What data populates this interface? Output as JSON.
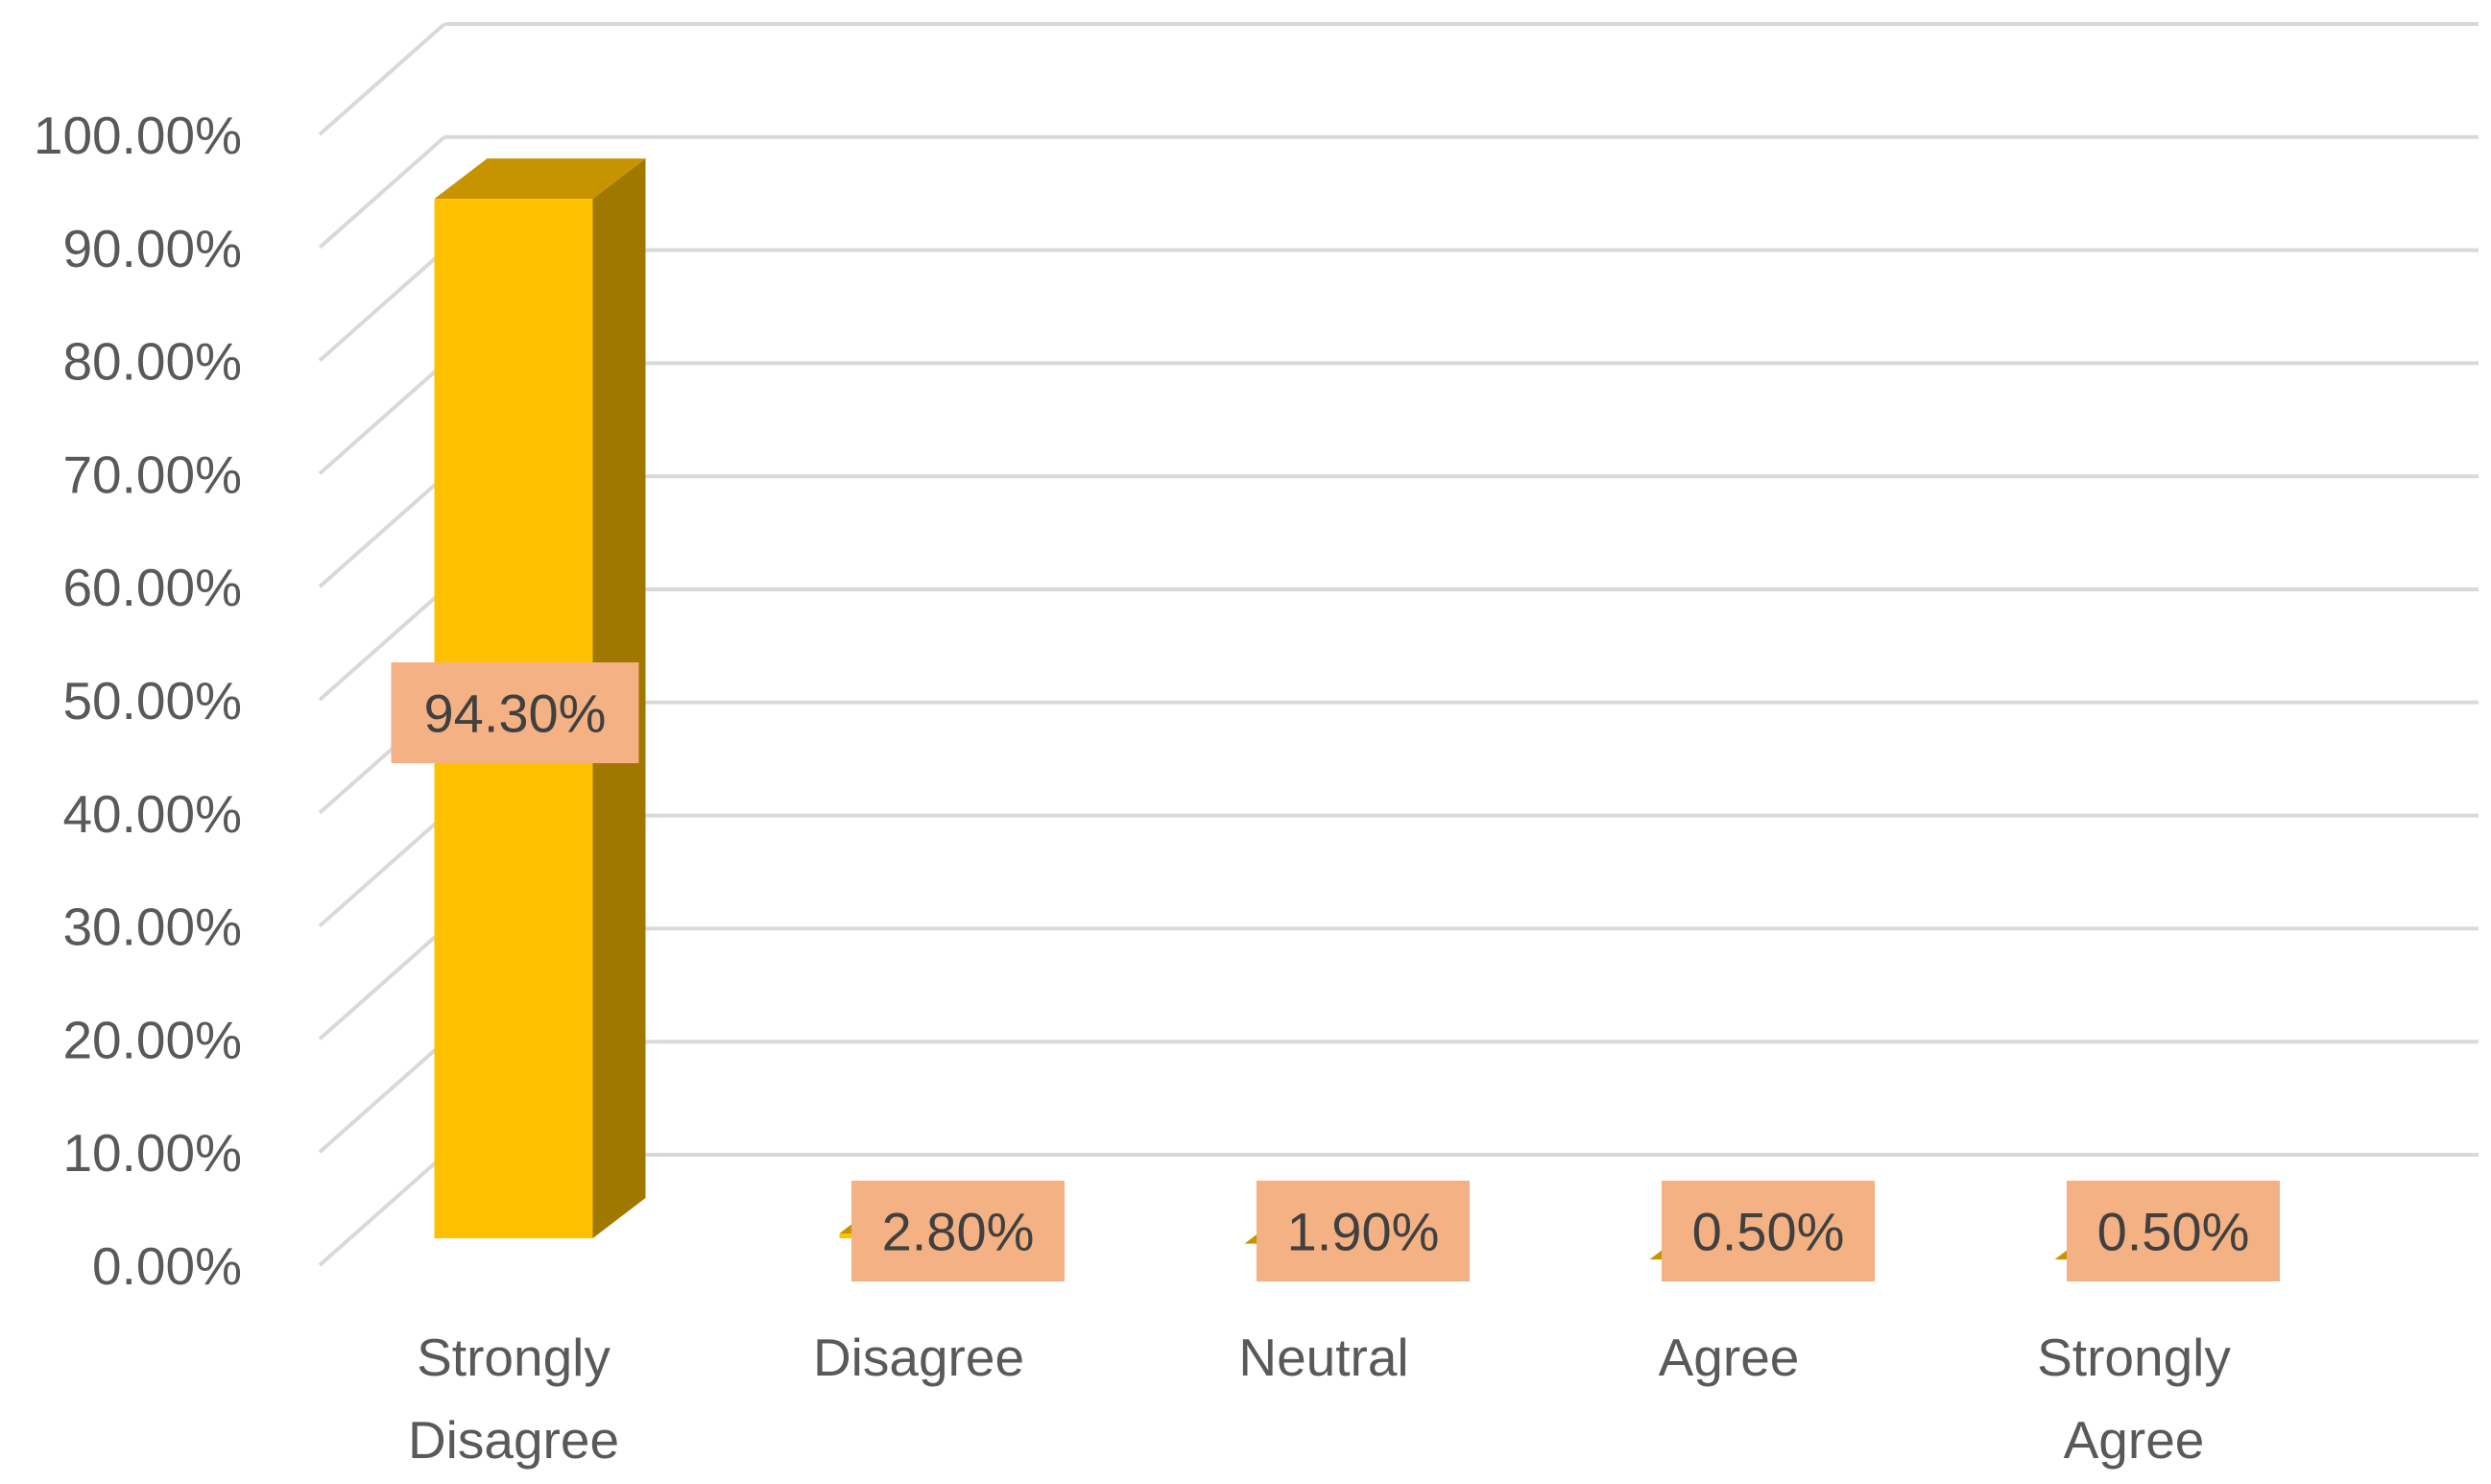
{
  "chart_data": {
    "type": "bar",
    "style": "3d-column",
    "categories": [
      [
        "Strongly",
        "Disagree"
      ],
      [
        "Disagree"
      ],
      [
        "Neutral"
      ],
      [
        "Agree"
      ],
      [
        "Strongly",
        "Agree"
      ]
    ],
    "values": [
      94.3,
      2.8,
      1.9,
      0.5,
      0.5
    ],
    "data_labels": [
      "94.30%",
      "2.80%",
      "1.90%",
      "0.50%",
      "0.50%"
    ],
    "ylim": [
      0,
      100
    ],
    "y_ticks": [
      0,
      10,
      20,
      30,
      40,
      50,
      60,
      70,
      80,
      90,
      100
    ],
    "y_tick_labels": [
      "0.00%",
      "10.00%",
      "20.00%",
      "30.00%",
      "40.00%",
      "50.00%",
      "60.00%",
      "70.00%",
      "80.00%",
      "90.00%",
      "100.00%"
    ],
    "grid": true,
    "colors": {
      "bar_front": "#FFC000",
      "bar_side": "#A07800",
      "bar_top": "#C79400",
      "label_box": "#F4B183",
      "gridline": "#D9D9D9",
      "text": "#595959"
    }
  }
}
